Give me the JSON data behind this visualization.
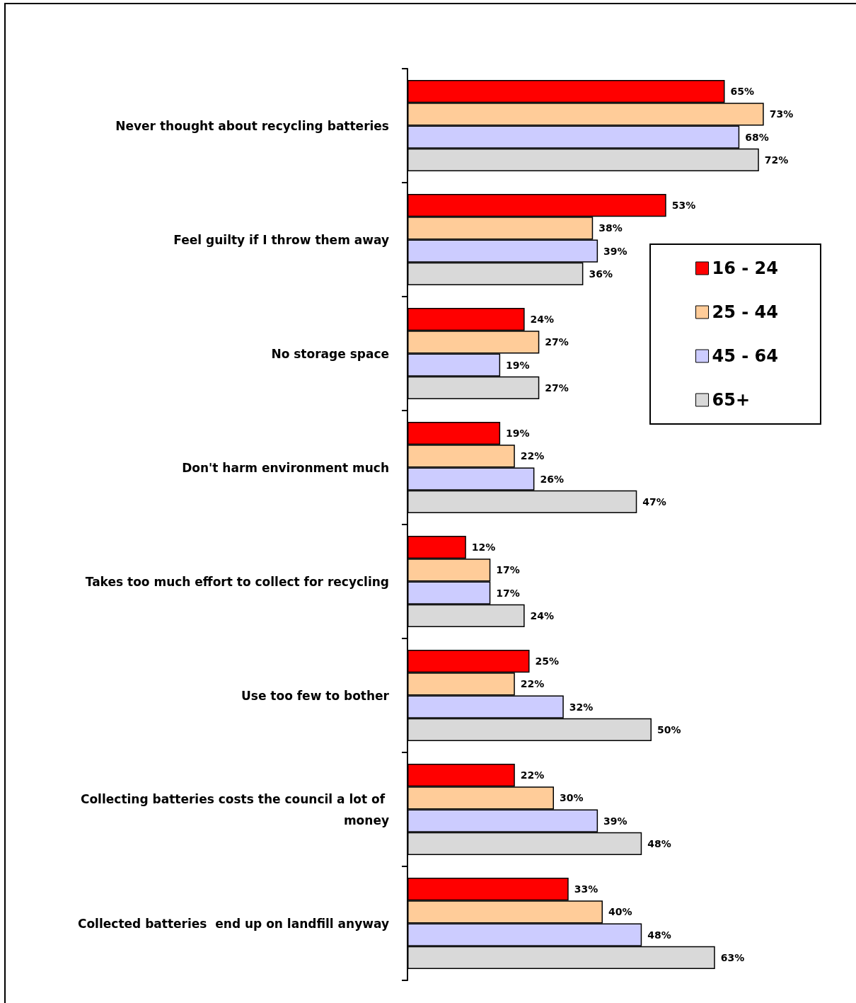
{
  "chart_data": {
    "type": "bar",
    "orientation": "horizontal",
    "legend": "right",
    "categories": [
      "Never thought about recycling batteries",
      "Feel guilty if I throw them away",
      "No storage space",
      "Don't harm environment much",
      "Takes too much effort to collect for recycling",
      "Use too few to bother",
      "Collecting batteries costs the council a lot of money",
      "Collected batteries  end up on landfill anyway"
    ],
    "series": [
      {
        "name": "16 - 24",
        "color": "#ff0000",
        "values": [
          65,
          53,
          24,
          19,
          12,
          25,
          22,
          33
        ],
        "value_labels": [
          "65%",
          "53%",
          "24%",
          "19%",
          "12%",
          "25%",
          "22%",
          "33%"
        ]
      },
      {
        "name": "25 - 44",
        "color": "#ffcc99",
        "values": [
          73,
          38,
          27,
          22,
          17,
          22,
          30,
          40
        ],
        "value_labels": [
          "73%",
          "38%",
          "27%",
          "22%",
          "17%",
          "22%",
          "30%",
          "40%"
        ]
      },
      {
        "name": "45 - 64",
        "color": "#ccccff",
        "values": [
          68,
          39,
          19,
          26,
          17,
          32,
          39,
          48
        ],
        "value_labels": [
          "68%",
          "39%",
          "19%",
          "26%",
          "17%",
          "32%",
          "39%",
          "48%"
        ]
      },
      {
        "name": "65+",
        "color": "#d9d9d9",
        "values": [
          72,
          36,
          27,
          47,
          24,
          50,
          48,
          63
        ],
        "value_labels": [
          "72%",
          "36%",
          "27%",
          "47%",
          "24%",
          "50%",
          "48%",
          "63%"
        ]
      }
    ]
  }
}
